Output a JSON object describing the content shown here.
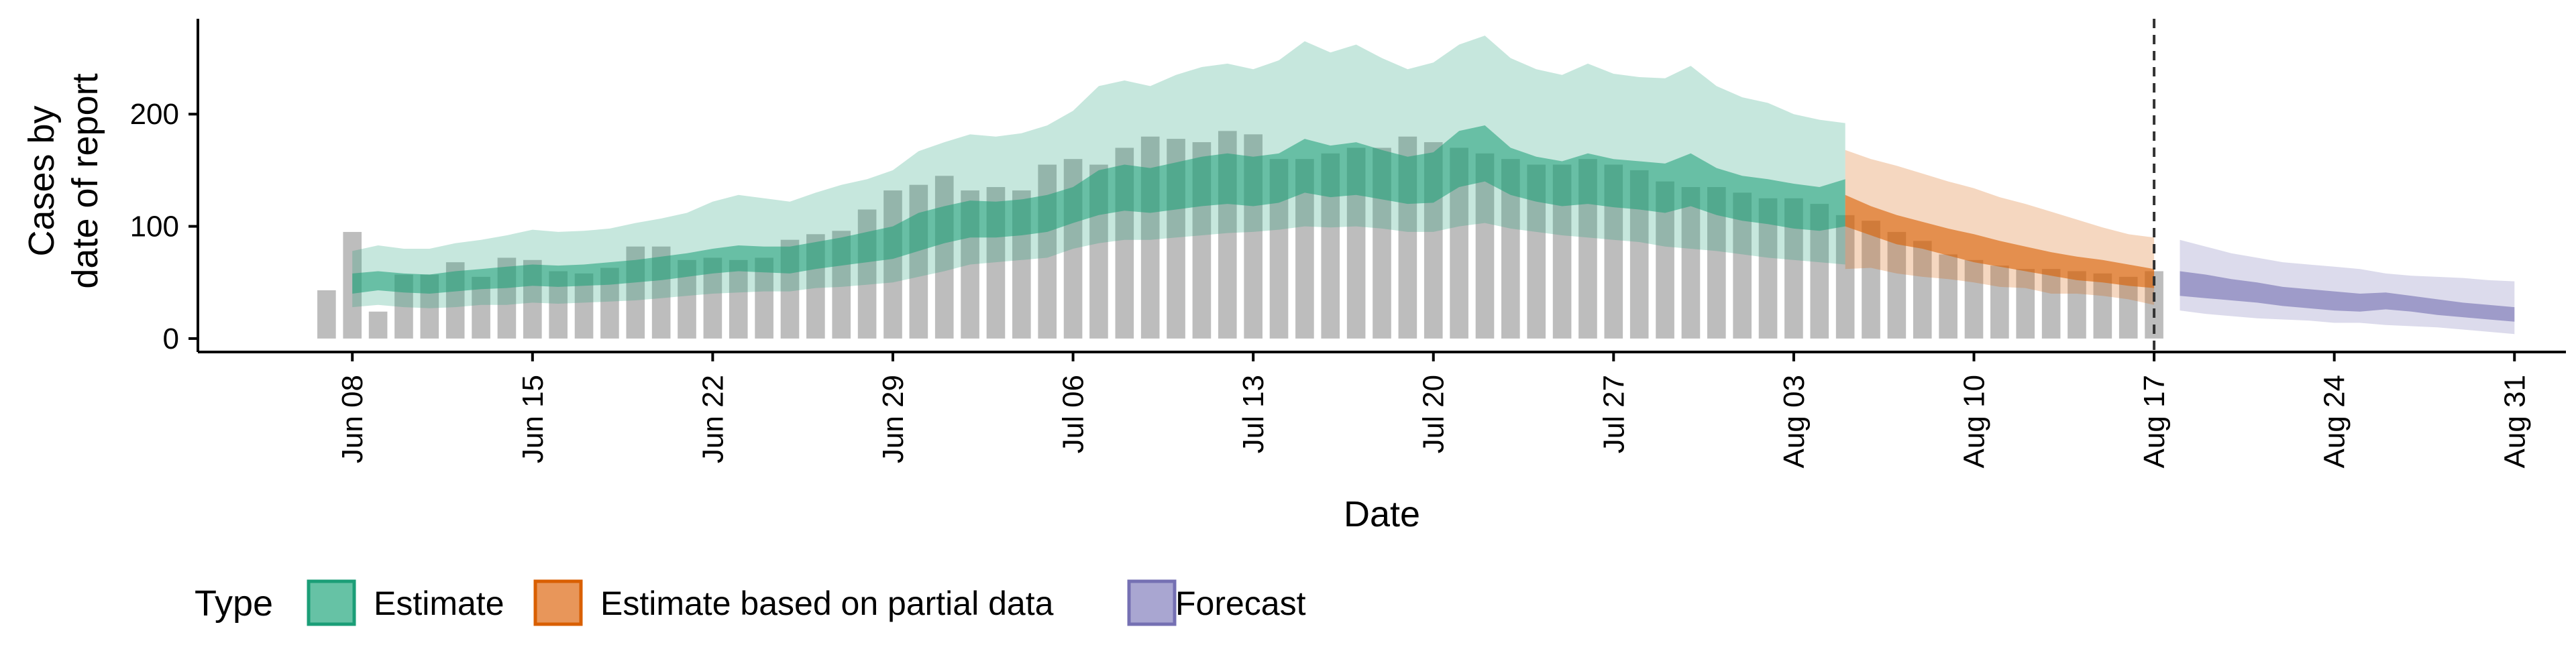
{
  "chart_data": {
    "type": "area",
    "xlabel": "Date",
    "ylabel_lines": [
      "Cases by",
      "date of report"
    ],
    "ylim": [
      -12,
      285
    ],
    "yticks": [
      0,
      100,
      200
    ],
    "x_range": [
      "2020-06-02",
      "2020-09-02"
    ],
    "xticks": [
      {
        "date": "2020-06-08",
        "label": "Jun 08"
      },
      {
        "date": "2020-06-15",
        "label": "Jun 15"
      },
      {
        "date": "2020-06-22",
        "label": "Jun 22"
      },
      {
        "date": "2020-06-29",
        "label": "Jun 29"
      },
      {
        "date": "2020-07-06",
        "label": "Jul 06"
      },
      {
        "date": "2020-07-13",
        "label": "Jul 13"
      },
      {
        "date": "2020-07-20",
        "label": "Jul 20"
      },
      {
        "date": "2020-07-27",
        "label": "Jul 27"
      },
      {
        "date": "2020-08-03",
        "label": "Aug 03"
      },
      {
        "date": "2020-08-10",
        "label": "Aug 10"
      },
      {
        "date": "2020-08-17",
        "label": "Aug 17"
      },
      {
        "date": "2020-08-24",
        "label": "Aug 24"
      },
      {
        "date": "2020-08-31",
        "label": "Aug 31"
      }
    ],
    "vline_date": "2020-08-17",
    "bars": {
      "start_date": "2020-06-07",
      "color": "#bdbdbd",
      "values": [
        43,
        95,
        24,
        57,
        57,
        68,
        55,
        72,
        70,
        60,
        58,
        63,
        82,
        82,
        70,
        72,
        70,
        72,
        88,
        93,
        96,
        115,
        132,
        137,
        145,
        132,
        135,
        132,
        155,
        160,
        155,
        170,
        180,
        178,
        175,
        185,
        182,
        160,
        160,
        165,
        170,
        170,
        180,
        175,
        170,
        165,
        160,
        155,
        155,
        160,
        155,
        150,
        140,
        135,
        135,
        130,
        125,
        125,
        120,
        110,
        105,
        95,
        87,
        75,
        70,
        65,
        62,
        62,
        60,
        58,
        55,
        60
      ]
    },
    "series": [
      {
        "name": "Estimate",
        "color": "#1b9e77",
        "start_date": "2020-06-08",
        "outer_opacity": 0.25,
        "inner_opacity": 0.55,
        "outer_upper": [
          78,
          83,
          80,
          80,
          85,
          88,
          92,
          97,
          95,
          96,
          98,
          103,
          107,
          112,
          122,
          128,
          125,
          122,
          130,
          137,
          142,
          150,
          167,
          175,
          182,
          180,
          183,
          190,
          203,
          225,
          230,
          225,
          235,
          242,
          245,
          240,
          248,
          265,
          255,
          262,
          250,
          240,
          246,
          262,
          270,
          250,
          240,
          235,
          245,
          236,
          233,
          232,
          243,
          225,
          215,
          210,
          200,
          195,
          192
        ],
        "outer_lower": [
          28,
          30,
          28,
          27,
          28,
          30,
          30,
          32,
          31,
          32,
          33,
          34,
          36,
          38,
          40,
          41,
          42,
          42,
          45,
          46,
          48,
          50,
          55,
          60,
          66,
          68,
          70,
          72,
          80,
          85,
          88,
          88,
          90,
          92,
          94,
          95,
          97,
          100,
          99,
          100,
          98,
          95,
          95,
          100,
          103,
          98,
          95,
          92,
          90,
          88,
          86,
          82,
          80,
          78,
          75,
          72,
          70,
          68,
          66
        ],
        "inner_upper": [
          58,
          60,
          58,
          57,
          60,
          62,
          64,
          66,
          65,
          66,
          68,
          70,
          73,
          76,
          80,
          83,
          82,
          82,
          86,
          90,
          95,
          100,
          112,
          118,
          123,
          122,
          124,
          128,
          135,
          150,
          155,
          152,
          157,
          162,
          165,
          162,
          165,
          178,
          172,
          175,
          168,
          162,
          166,
          185,
          190,
          170,
          162,
          158,
          165,
          160,
          158,
          156,
          165,
          152,
          145,
          142,
          138,
          135,
          142
        ],
        "inner_lower": [
          40,
          43,
          41,
          40,
          42,
          44,
          45,
          47,
          46,
          47,
          48,
          50,
          52,
          55,
          58,
          60,
          59,
          58,
          62,
          65,
          68,
          71,
          78,
          85,
          90,
          90,
          92,
          95,
          103,
          110,
          114,
          112,
          115,
          118,
          120,
          118,
          121,
          130,
          126,
          128,
          124,
          120,
          121,
          135,
          140,
          128,
          122,
          118,
          120,
          117,
          115,
          112,
          118,
          110,
          105,
          102,
          98,
          96,
          100
        ]
      },
      {
        "name": "Estimate based on partial data",
        "color": "#d95f02",
        "start_date": "2020-08-05",
        "outer_opacity": 0.25,
        "inner_opacity": 0.6,
        "outer_upper": [
          168,
          160,
          154,
          147,
          140,
          134,
          126,
          120,
          113,
          106,
          99,
          93,
          90
        ],
        "outer_lower": [
          62,
          63,
          58,
          55,
          53,
          50,
          46,
          45,
          40,
          40,
          38,
          35,
          30
        ],
        "inner_upper": [
          128,
          118,
          110,
          104,
          98,
          93,
          87,
          82,
          77,
          73,
          70,
          66,
          62
        ],
        "inner_lower": [
          100,
          92,
          84,
          80,
          74,
          68,
          64,
          60,
          56,
          52,
          50,
          47,
          45
        ]
      },
      {
        "name": "Forecast",
        "color": "#7570b3",
        "start_date": "2020-08-18",
        "outer_opacity": 0.25,
        "inner_opacity": 0.6,
        "outer_upper": [
          88,
          82,
          76,
          72,
          68,
          66,
          64,
          62,
          58,
          56,
          55,
          54,
          52,
          51
        ],
        "outer_lower": [
          25,
          22,
          20,
          18,
          17,
          16,
          14,
          14,
          12,
          11,
          10,
          8,
          6,
          4
        ],
        "inner_upper": [
          60,
          57,
          53,
          50,
          46,
          44,
          42,
          40,
          41,
          38,
          35,
          32,
          30,
          28
        ],
        "inner_lower": [
          38,
          36,
          34,
          32,
          29,
          27,
          25,
          24,
          26,
          24,
          21,
          19,
          17,
          15
        ]
      }
    ]
  },
  "legend": {
    "title": "Type",
    "items": [
      {
        "label": "Estimate",
        "color": "#1b9e77",
        "fill": "#66c2a5"
      },
      {
        "label": "Estimate based on partial data",
        "color": "#d95f02",
        "fill": "#e8965a"
      },
      {
        "label": "Forecast",
        "color": "#7570b3",
        "fill": "#a9a6d1"
      }
    ]
  }
}
